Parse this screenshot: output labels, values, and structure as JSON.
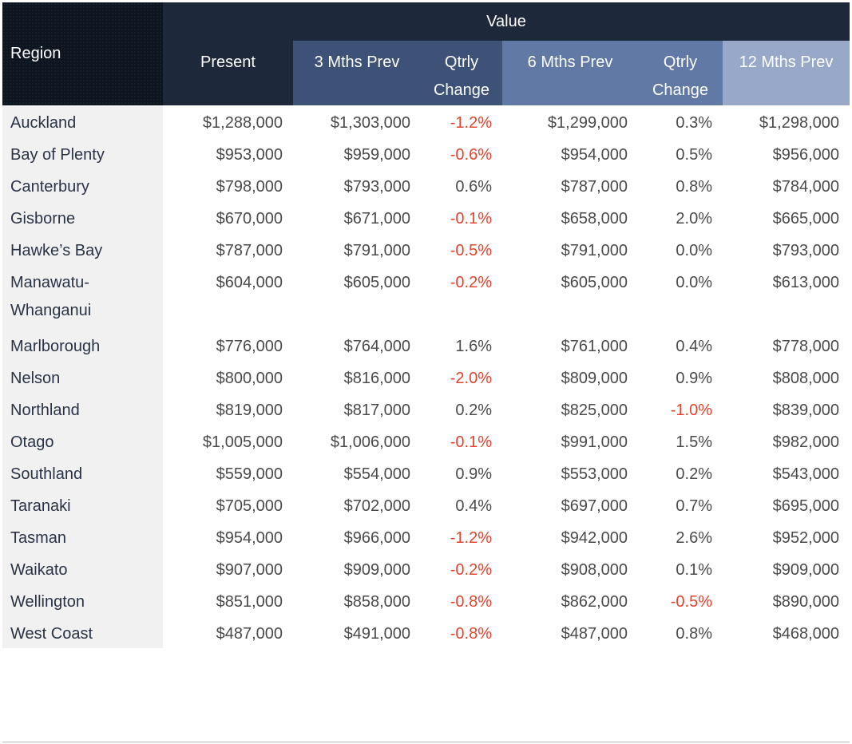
{
  "header": {
    "region": "Region",
    "value": "Value",
    "present": "Present",
    "three_months_prev": "3 Mths Prev",
    "qtrly_change_1": [
      "Qtrly",
      "Change"
    ],
    "six_months_prev": "6 Mths Prev",
    "qtrly_change_2": [
      "Qtrly",
      "Change"
    ],
    "twelve_months_prev": "12 Mths Prev"
  },
  "colors": {
    "header_dark": "#1e283b",
    "header_mid": "#3d5276",
    "header_light": "#6179a5",
    "header_lightest": "#97a8c8",
    "negative_text": "#e2442f",
    "region_cell_bg": "#f1f1f1"
  },
  "rows": [
    {
      "region": "Auckland",
      "present": "$1,288,000",
      "m3": "$1,303,000",
      "qc1": "-1.2%",
      "m6": "$1,299,000",
      "qc2": "0.3%",
      "m12": "$1,298,000"
    },
    {
      "region": "Bay of Plenty",
      "present": "$953,000",
      "m3": "$959,000",
      "qc1": "-0.6%",
      "m6": "$954,000",
      "qc2": "0.5%",
      "m12": "$956,000"
    },
    {
      "region": "Canterbury",
      "present": "$798,000",
      "m3": "$793,000",
      "qc1": "0.6%",
      "m6": "$787,000",
      "qc2": "0.8%",
      "m12": "$784,000"
    },
    {
      "region": "Gisborne",
      "present": "$670,000",
      "m3": "$671,000",
      "qc1": "-0.1%",
      "m6": "$658,000",
      "qc2": "2.0%",
      "m12": "$665,000"
    },
    {
      "region": "Hawke’s Bay",
      "present": "$787,000",
      "m3": "$791,000",
      "qc1": "-0.5%",
      "m6": "$791,000",
      "qc2": "0.0%",
      "m12": "$793,000"
    },
    {
      "region": [
        "Manawatu-",
        "Whanganui"
      ],
      "present": "$604,000",
      "m3": "$605,000",
      "qc1": "-0.2%",
      "m6": "$605,000",
      "qc2": "0.0%",
      "m12": "$613,000"
    },
    {
      "region": "Marlborough",
      "present": "$776,000",
      "m3": "$764,000",
      "qc1": "1.6%",
      "m6": "$761,000",
      "qc2": "0.4%",
      "m12": "$778,000"
    },
    {
      "region": "Nelson",
      "present": "$800,000",
      "m3": "$816,000",
      "qc1": "-2.0%",
      "m6": "$809,000",
      "qc2": "0.9%",
      "m12": "$808,000"
    },
    {
      "region": "Northland",
      "present": "$819,000",
      "m3": "$817,000",
      "qc1": "0.2%",
      "m6": "$825,000",
      "qc2": "-1.0%",
      "m12": "$839,000"
    },
    {
      "region": "Otago",
      "present": "$1,005,000",
      "m3": "$1,006,000",
      "qc1": "-0.1%",
      "m6": "$991,000",
      "qc2": "1.5%",
      "m12": "$982,000"
    },
    {
      "region": "Southland",
      "present": "$559,000",
      "m3": "$554,000",
      "qc1": "0.9%",
      "m6": "$553,000",
      "qc2": "0.2%",
      "m12": "$543,000"
    },
    {
      "region": "Taranaki",
      "present": "$705,000",
      "m3": "$702,000",
      "qc1": "0.4%",
      "m6": "$697,000",
      "qc2": "0.7%",
      "m12": "$695,000"
    },
    {
      "region": "Tasman",
      "present": "$954,000",
      "m3": "$966,000",
      "qc1": "-1.2%",
      "m6": "$942,000",
      "qc2": "2.6%",
      "m12": "$952,000"
    },
    {
      "region": "Waikato",
      "present": "$907,000",
      "m3": "$909,000",
      "qc1": "-0.2%",
      "m6": "$908,000",
      "qc2": "0.1%",
      "m12": "$909,000"
    },
    {
      "region": "Wellington",
      "present": "$851,000",
      "m3": "$858,000",
      "qc1": "-0.8%",
      "m6": "$862,000",
      "qc2": "-0.5%",
      "m12": "$890,000"
    },
    {
      "region": "West Coast",
      "present": "$487,000",
      "m3": "$491,000",
      "qc1": "-0.8%",
      "m6": "$487,000",
      "qc2": "0.8%",
      "m12": "$468,000"
    }
  ]
}
